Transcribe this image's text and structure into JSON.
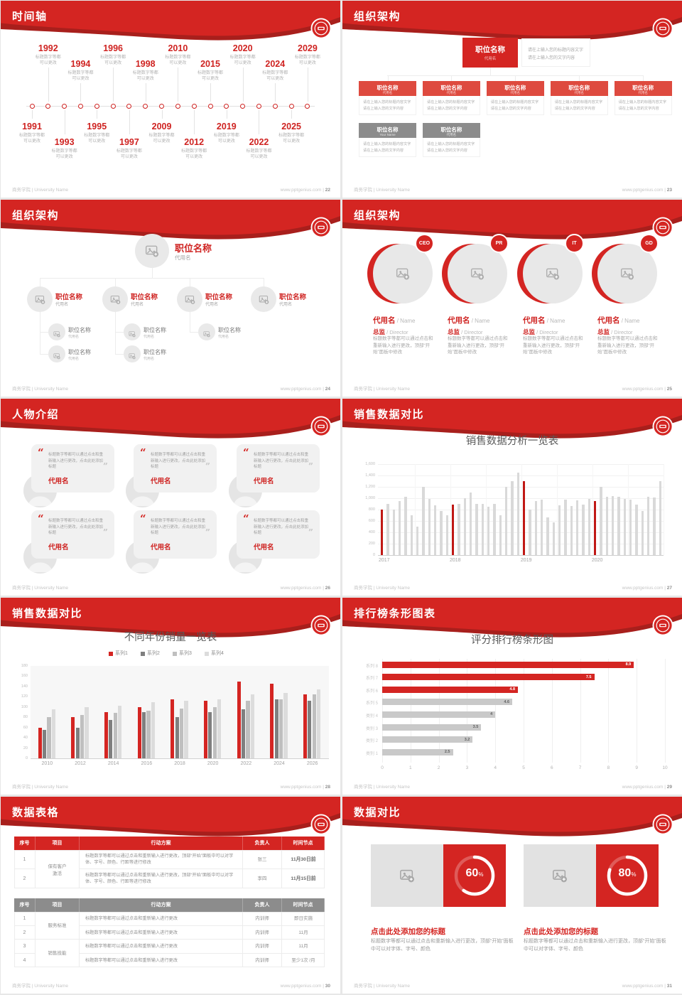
{
  "page": {
    "background": "#e7e7e7"
  },
  "brand": {
    "footer_left": "商务学院 | University Name",
    "site": "www.pptgenius.com",
    "logo": "university-seal"
  },
  "colors": {
    "red": "#d42522",
    "dark_red": "#a81f1c",
    "box_red": "#de4a3f",
    "text_red": "#cf2321",
    "chart_red": "#c01815",
    "gray_header": "#8c8c8c",
    "bar_gray": "#d9d9d9",
    "series_colors": [
      "#d42522",
      "#7f7f7f",
      "#bfbfbf",
      "#dcdcdc"
    ]
  },
  "placeholders": {
    "position": "职位名称",
    "alias": "代用名",
    "your_name": "Your Name",
    "name_en": "Name",
    "role": "总监",
    "role_en": "Director",
    "note_line1": "请在上输入您的标题内容文字",
    "note_line2": "请在上输入您的文字内容",
    "tl_caption1": "标题数字等都",
    "tl_caption2": "可以更改",
    "member_desc": "标题数字等都可以通过点击和重新输入进行更改，顶部“开始”面板中修改",
    "quote_text": "标题数字等都可以通过点击和重新输入进行更改，点击此处添加标题"
  },
  "slides": [
    {
      "type": "timeline",
      "title": "时间轴",
      "page_no": "22",
      "years": [
        "1991",
        "1992",
        "1993",
        "1994",
        "1995",
        "1996",
        "1997",
        "1998",
        "2009",
        "2010",
        "2012",
        "2015",
        "2019",
        "2020",
        "2022",
        "2024",
        "2025",
        "2029"
      ]
    },
    {
      "type": "org_boxes",
      "title": "组织架构",
      "page_no": "23",
      "root": {
        "title": "职位名称",
        "sub": "代用名"
      },
      "row1": [
        {
          "title": "职位名称",
          "sub": "代用名"
        },
        {
          "title": "职位名称",
          "sub": "代用名"
        },
        {
          "title": "职位名称",
          "sub": "代用名"
        },
        {
          "title": "职位名称",
          "sub": "代用名"
        },
        {
          "title": "职位名称",
          "sub": "代用名"
        }
      ],
      "row2": [
        {
          "title": "职位名称",
          "sub": "Your Name"
        },
        {
          "title": "职位名称",
          "sub": "代用名"
        }
      ]
    },
    {
      "type": "org_tree",
      "title": "组织架构",
      "page_no": "24",
      "root": {
        "title": "职位名称",
        "sub": "代用名"
      },
      "branches": [
        {
          "title": "职位名称",
          "sub": "代用名",
          "children": [
            {
              "title": "职位名称",
              "sub": "代用名"
            },
            {
              "title": "职位名称",
              "sub": "代用名"
            }
          ]
        },
        {
          "title": "职位名称",
          "sub": "代用名",
          "children": [
            {
              "title": "职位名称",
              "sub": "代用名"
            },
            {
              "title": "职位名称",
              "sub": "代用名"
            }
          ]
        },
        {
          "title": "职位名称",
          "sub": "代用名",
          "children": [
            {
              "title": "职位名称",
              "sub": "代用名"
            }
          ]
        },
        {
          "title": "职位名称",
          "sub": "代用名",
          "children": []
        }
      ]
    },
    {
      "type": "org_circles",
      "title": "组织架构",
      "page_no": "25",
      "members": [
        {
          "badge": "CEO",
          "name": "代用名",
          "name_en": "Name",
          "role": "总监",
          "role_en": "Director"
        },
        {
          "badge": "PR",
          "name": "代用名",
          "name_en": "Name",
          "role": "总监",
          "role_en": "Director"
        },
        {
          "badge": "IT",
          "name": "代用名",
          "name_en": "Name",
          "role": "总监",
          "role_en": "Director"
        },
        {
          "badge": "GD",
          "name": "代用名",
          "name_en": "Name",
          "role": "总监",
          "role_en": "Director"
        }
      ]
    },
    {
      "type": "quotes",
      "title": "人物介绍",
      "page_no": "26",
      "cards": [
        {
          "name": "代用名"
        },
        {
          "name": "代用名"
        },
        {
          "name": "代用名"
        },
        {
          "name": "代用名"
        },
        {
          "name": "代用名"
        },
        {
          "name": "代用名"
        }
      ]
    },
    {
      "type": "chart_monthly",
      "title": "销售数据对比",
      "page_no": "27",
      "chart_ref": 0
    },
    {
      "type": "chart_grouped",
      "title": "销售数据对比",
      "page_no": "28",
      "chart_ref": 1
    },
    {
      "type": "chart_hbar",
      "title": "排行榜条形图表",
      "page_no": "29",
      "chart_ref": 2
    },
    {
      "type": "tables",
      "title": "数据表格",
      "page_no": "30",
      "table1": {
        "header": [
          "序号",
          "项目",
          "行动方案",
          "负责人",
          "时间节点"
        ],
        "item_label_lines": [
          "保有客户",
          "激活"
        ],
        "rows": [
          {
            "no": "1",
            "action": "标题数字等都可以通过点击和重新输入进行更改，顶部“开始”面板中可以对字体、字号、颜色、行距等进行修改",
            "owner": "张三",
            "time": "11月30日前"
          },
          {
            "no": "2",
            "action": "标题数字等都可以通过点击和重新输入进行更改，顶部“开始”面板中可以对字体、字号、颜色、行距等进行修改",
            "owner": "李四",
            "time": "11月15日前"
          }
        ]
      },
      "table2": {
        "header": [
          "序号",
          "项目",
          "行动方案",
          "负责人",
          "时间节点"
        ],
        "item_labels": [
          "服务标准",
          "销售技能"
        ],
        "rows": [
          {
            "no": "1",
            "action": "标题数字等都可以通过点击和重新输入进行更改",
            "owner": "内训师",
            "time": "即日实施"
          },
          {
            "no": "2",
            "action": "标题数字等都可以通过点击和重新输入进行更改",
            "owner": "内训师",
            "time": "11月"
          },
          {
            "no": "3",
            "action": "标题数字等都可以通过点击和重新输入进行更改",
            "owner": "内训师",
            "time": "11月"
          },
          {
            "no": "4",
            "action": "标题数字等都可以通过点击和重新输入进行更改",
            "owner": "内训师",
            "time": "至少1次 /月"
          }
        ]
      }
    },
    {
      "type": "progress",
      "title": "数据对比",
      "page_no": "31",
      "items": [
        {
          "percent": 60,
          "value_label": "60",
          "heading": "点击此处添加您的标题",
          "body": "标题数字等都可以通过点击和重新输入进行更改，顶部“开始”面板中可以对字体、字号、颜色"
        },
        {
          "percent": 80,
          "value_label": "80",
          "heading": "点击此处添加您的标题",
          "body": "标题数字等都可以通过点击和重新输入进行更改，顶部“开始”面板中可以对字体、字号、颜色"
        }
      ]
    }
  ],
  "chart_data": [
    {
      "id": "sales_monthly",
      "type": "bar",
      "title": "销售数据分析一览表",
      "x_group_labels": [
        "2017",
        "2018",
        "2019",
        "2020"
      ],
      "values": [
        800,
        900,
        800,
        950,
        1020,
        700,
        500,
        1200,
        990,
        880,
        780,
        700,
        890,
        900,
        1000,
        1100,
        900,
        900,
        850,
        900,
        700,
        1200,
        1300,
        1450,
        1300,
        800,
        950,
        970,
        660,
        580,
        870,
        980,
        860,
        960,
        890,
        990,
        950,
        1200,
        1030,
        1040,
        1030,
        990,
        970,
        890,
        780,
        1020,
        1010,
        1300
      ],
      "highlight_indexes": [
        0,
        12,
        24,
        36
      ],
      "ylim": [
        0,
        1600
      ],
      "yticks": [
        "0",
        "200",
        "400",
        "600",
        "800",
        "1,000",
        "1,200",
        "1,400",
        "1,600"
      ],
      "grid": true,
      "legend_position": "none"
    },
    {
      "id": "sales_by_year",
      "type": "bar",
      "title": "不同年份销量一览表",
      "categories": [
        "2010",
        "2012",
        "2014",
        "2016",
        "2018",
        "2020",
        "2022",
        "2024",
        "2026"
      ],
      "series": [
        {
          "name": "系列1",
          "values": [
            60,
            80,
            90,
            100,
            115,
            112,
            150,
            145,
            125
          ]
        },
        {
          "name": "系列2",
          "values": [
            55,
            60,
            75,
            90,
            80,
            90,
            95,
            115,
            112
          ]
        },
        {
          "name": "系列3",
          "values": [
            80,
            85,
            88,
            93,
            97,
            100,
            112,
            115,
            125
          ]
        },
        {
          "name": "系列4",
          "values": [
            95,
            100,
            103,
            110,
            112,
            115,
            125,
            128,
            135
          ]
        }
      ],
      "ylim": [
        0,
        180
      ],
      "yticks": [
        "180",
        "160",
        "140",
        "120",
        "100",
        "80",
        "60",
        "40",
        "20",
        "0"
      ],
      "legend_position": "top"
    },
    {
      "id": "score_ranking",
      "type": "bar",
      "orientation": "horizontal",
      "title": "评分排行榜条形图",
      "categories": [
        "系列 8",
        "系列 7",
        "系列 6",
        "系列 5",
        "类别 4",
        "类别 3",
        "类别 2",
        "类别 1"
      ],
      "values": [
        8.9,
        7.5,
        4.8,
        4.6,
        4,
        3.5,
        3.2,
        2.5
      ],
      "value_labels": [
        "8.9",
        "7.5",
        "4.8",
        "4.6",
        "4",
        "3.5",
        "3.2",
        "2.5"
      ],
      "red_count": 3,
      "xlim": [
        0,
        10
      ],
      "xticks": [
        "0",
        "1",
        "2",
        "3",
        "4",
        "5",
        "6",
        "7",
        "8",
        "9",
        "10"
      ]
    }
  ]
}
